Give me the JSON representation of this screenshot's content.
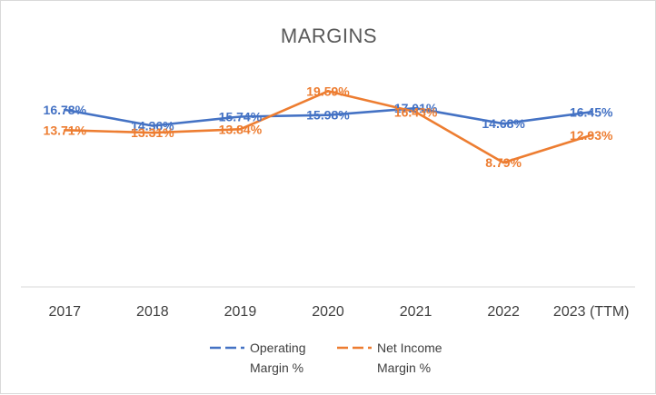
{
  "chart_data": {
    "type": "line",
    "title": "MARGINS",
    "categories": [
      "2017",
      "2018",
      "2019",
      "2020",
      "2021",
      "2022",
      "2023 (TTM)"
    ],
    "series": [
      {
        "name": "Operating Margin %",
        "legend_lines": [
          "Operating",
          "Margin %"
        ],
        "color": "#4472C4",
        "values": [
          16.78,
          14.36,
          15.74,
          15.98,
          17.01,
          14.68,
          16.45
        ],
        "labels": [
          "16.78%",
          "14.36%",
          "15.74%",
          "15.98%",
          "17.01%",
          "14.68%",
          "16.45%"
        ]
      },
      {
        "name": "Net Income Margin %",
        "legend_lines": [
          "Net Income",
          "Margin %"
        ],
        "color": "#ED7D31",
        "values": [
          13.71,
          13.31,
          13.84,
          19.59,
          16.43,
          8.79,
          12.93
        ],
        "labels": [
          "13.71%",
          "13.31%",
          "13.84%",
          "19.59%",
          "16.43%",
          "8.79%",
          "12.93%"
        ]
      }
    ],
    "xlabel": "",
    "ylabel": "",
    "ylim": [
      -10,
      25
    ],
    "grid": false,
    "legend": "bottom"
  }
}
